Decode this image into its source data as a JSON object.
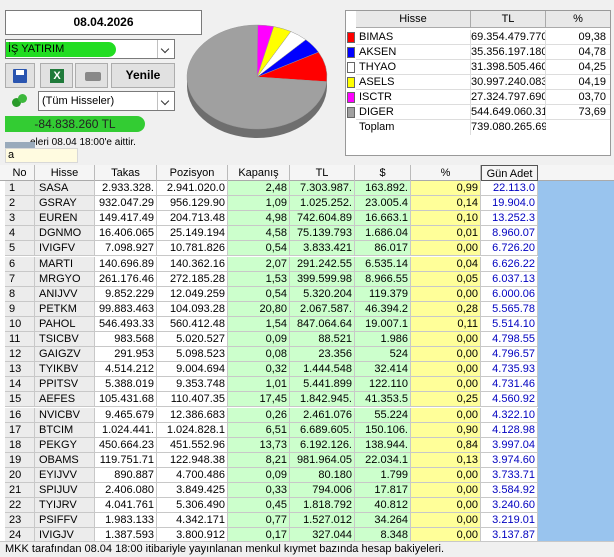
{
  "header": {
    "date": "08.04.2026",
    "account": "İŞ YATIRIM",
    "refresh_button": "Yenile",
    "filter": "(Tüm Hisseler)",
    "total": "-84.838.260 TL",
    "note": "eleri 08.04 18:00'e aittir.",
    "search": "a"
  },
  "summary_table": {
    "columns": [
      "Hisse",
      "TL",
      "%"
    ],
    "rows": [
      {
        "name": "BIMAS",
        "color": "#ff0000",
        "tl": "69.354.479.770",
        "pct": {
          "value": 9.38,
          "label": "09,38"
        }
      },
      {
        "name": "AKSEN",
        "color": "#0000ff",
        "tl": "35.356.197.180",
        "pct": {
          "value": 4.78,
          "label": "04,78"
        }
      },
      {
        "name": "THYAO",
        "color": "#ffffff",
        "tl": "31.398.505.460",
        "pct": {
          "value": 4.25,
          "label": "04,25"
        }
      },
      {
        "name": "ASELS",
        "color": "#ffff00",
        "tl": "30.997.240.083",
        "pct": {
          "value": 4.19,
          "label": "04,19"
        }
      },
      {
        "name": "ISCTR",
        "color": "#ff00ff",
        "tl": "27.324.797.690",
        "pct": {
          "value": 3.7,
          "label": "03,70"
        }
      },
      {
        "name": "DIGER",
        "color": "#a0a0a0",
        "tl": "544.649.060.318",
        "pct": {
          "value": 73.69,
          "label": "73,69"
        }
      }
    ],
    "total": {
      "name": "Toplam",
      "tl": "739.080.265.694"
    }
  },
  "table": {
    "columns": [
      "No",
      "Hisse",
      "Takas",
      "Pozisyon",
      "Kapanış",
      "TL",
      "$",
      "%",
      "Gün Adet"
    ],
    "rows": [
      [
        "1",
        "SASA",
        "2.933.328.",
        "2.941.020.0",
        "2,48",
        "7.303.987.",
        "163.892.",
        "0,99",
        "22.113.0"
      ],
      [
        "2",
        "GSRAY",
        "932.047.29",
        "956.129.90",
        "1,09",
        "1.025.252.",
        "23.005.4",
        "0,14",
        "19.904.0"
      ],
      [
        "3",
        "EUREN",
        "149.417.49",
        "204.713.48",
        "4,98",
        "742.604.89",
        "16.663.1",
        "0,10",
        "13.252.3"
      ],
      [
        "4",
        "DGNMO",
        "16.406.065",
        "25.149.194",
        "4,58",
        "75.139.793",
        "1.686.04",
        "0,01",
        "8.960.07"
      ],
      [
        "5",
        "IVIGFV",
        "7.098.927",
        "10.781.826",
        "0,54",
        "3.833.421",
        "86.017",
        "0,00",
        "6.726.20"
      ],
      [
        "6",
        "MARTI",
        "140.696.89",
        "140.362.16",
        "2,07",
        "291.242.55",
        "6.535.14",
        "0,04",
        "6.626.22"
      ],
      [
        "7",
        "MRGYO",
        "261.176.46",
        "272.185.28",
        "1,53",
        "399.599.98",
        "8.966.55",
        "0,05",
        "6.037.13"
      ],
      [
        "8",
        "ANIJVV",
        "9.852.229",
        "12.049.259",
        "0,54",
        "5.320.204",
        "119.379",
        "0,00",
        "6.000.06"
      ],
      [
        "9",
        "PETKM",
        "99.883.463",
        "104.093.28",
        "20,80",
        "2.067.587.",
        "46.394.2",
        "0,28",
        "5.565.78"
      ],
      [
        "10",
        "PAHOL",
        "546.493.33",
        "560.412.48",
        "1,54",
        "847.064.64",
        "19.007.1",
        "0,11",
        "5.514.10"
      ],
      [
        "11",
        "TSICBV",
        "983.568",
        "5.020.527",
        "0,09",
        "88.521",
        "1.986",
        "0,00",
        "4.798.55"
      ],
      [
        "12",
        "GAIGZV",
        "291.953",
        "5.098.523",
        "0,08",
        "23.356",
        "524",
        "0,00",
        "4.796.57"
      ],
      [
        "13",
        "TYIKBV",
        "4.514.212",
        "9.004.694",
        "0,32",
        "1.444.548",
        "32.414",
        "0,00",
        "4.735.93"
      ],
      [
        "14",
        "PPITSV",
        "5.388.019",
        "9.353.748",
        "1,01",
        "5.441.899",
        "122.110",
        "0,00",
        "4.731.46"
      ],
      [
        "15",
        "AEFES",
        "105.431.68",
        "110.407.35",
        "17,45",
        "1.842.945.",
        "41.353.5",
        "0,25",
        "4.560.92"
      ],
      [
        "16",
        "NVICBV",
        "9.465.679",
        "12.386.683",
        "0,26",
        "2.461.076",
        "55.224",
        "0,00",
        "4.322.10"
      ],
      [
        "17",
        "BTCIM",
        "1.024.441.",
        "1.024.828.1",
        "6,51",
        "6.689.605.",
        "150.106.",
        "0,90",
        "4.128.98"
      ],
      [
        "18",
        "PEKGY",
        "450.664.23",
        "451.552.96",
        "13,73",
        "6.192.126.",
        "138.944.",
        "0,84",
        "3.997.04"
      ],
      [
        "19",
        "OBAMS",
        "119.751.71",
        "122.948.38",
        "8,21",
        "981.964.05",
        "22.034.1",
        "0,13",
        "3.974.60"
      ],
      [
        "20",
        "EYIJVV",
        "890.887",
        "4.700.486",
        "0,09",
        "80.180",
        "1.799",
        "0,00",
        "3.733.71"
      ],
      [
        "21",
        "SPIJUV",
        "2.406.080",
        "3.849.425",
        "0,33",
        "794.006",
        "17.817",
        "0,00",
        "3.584.92"
      ],
      [
        "22",
        "TYIJRV",
        "4.041.761",
        "5.306.490",
        "0,45",
        "1.818.792",
        "40.812",
        "0,00",
        "3.240.60"
      ],
      [
        "23",
        "PSIFFV",
        "1.983.133",
        "4.342.171",
        "0,77",
        "1.527.012",
        "34.264",
        "0,00",
        "3.219.01"
      ],
      [
        "24",
        "IVIGJV",
        "1.387.593",
        "3.800.912",
        "0,17",
        "327.044",
        "8.348",
        "0,00",
        "3.137.87"
      ]
    ]
  },
  "status_bar": "MKK tarafından 08.04 18:00 itibariyle yayınlanan menkul kıymet bazında hesap bakiyeleri."
}
